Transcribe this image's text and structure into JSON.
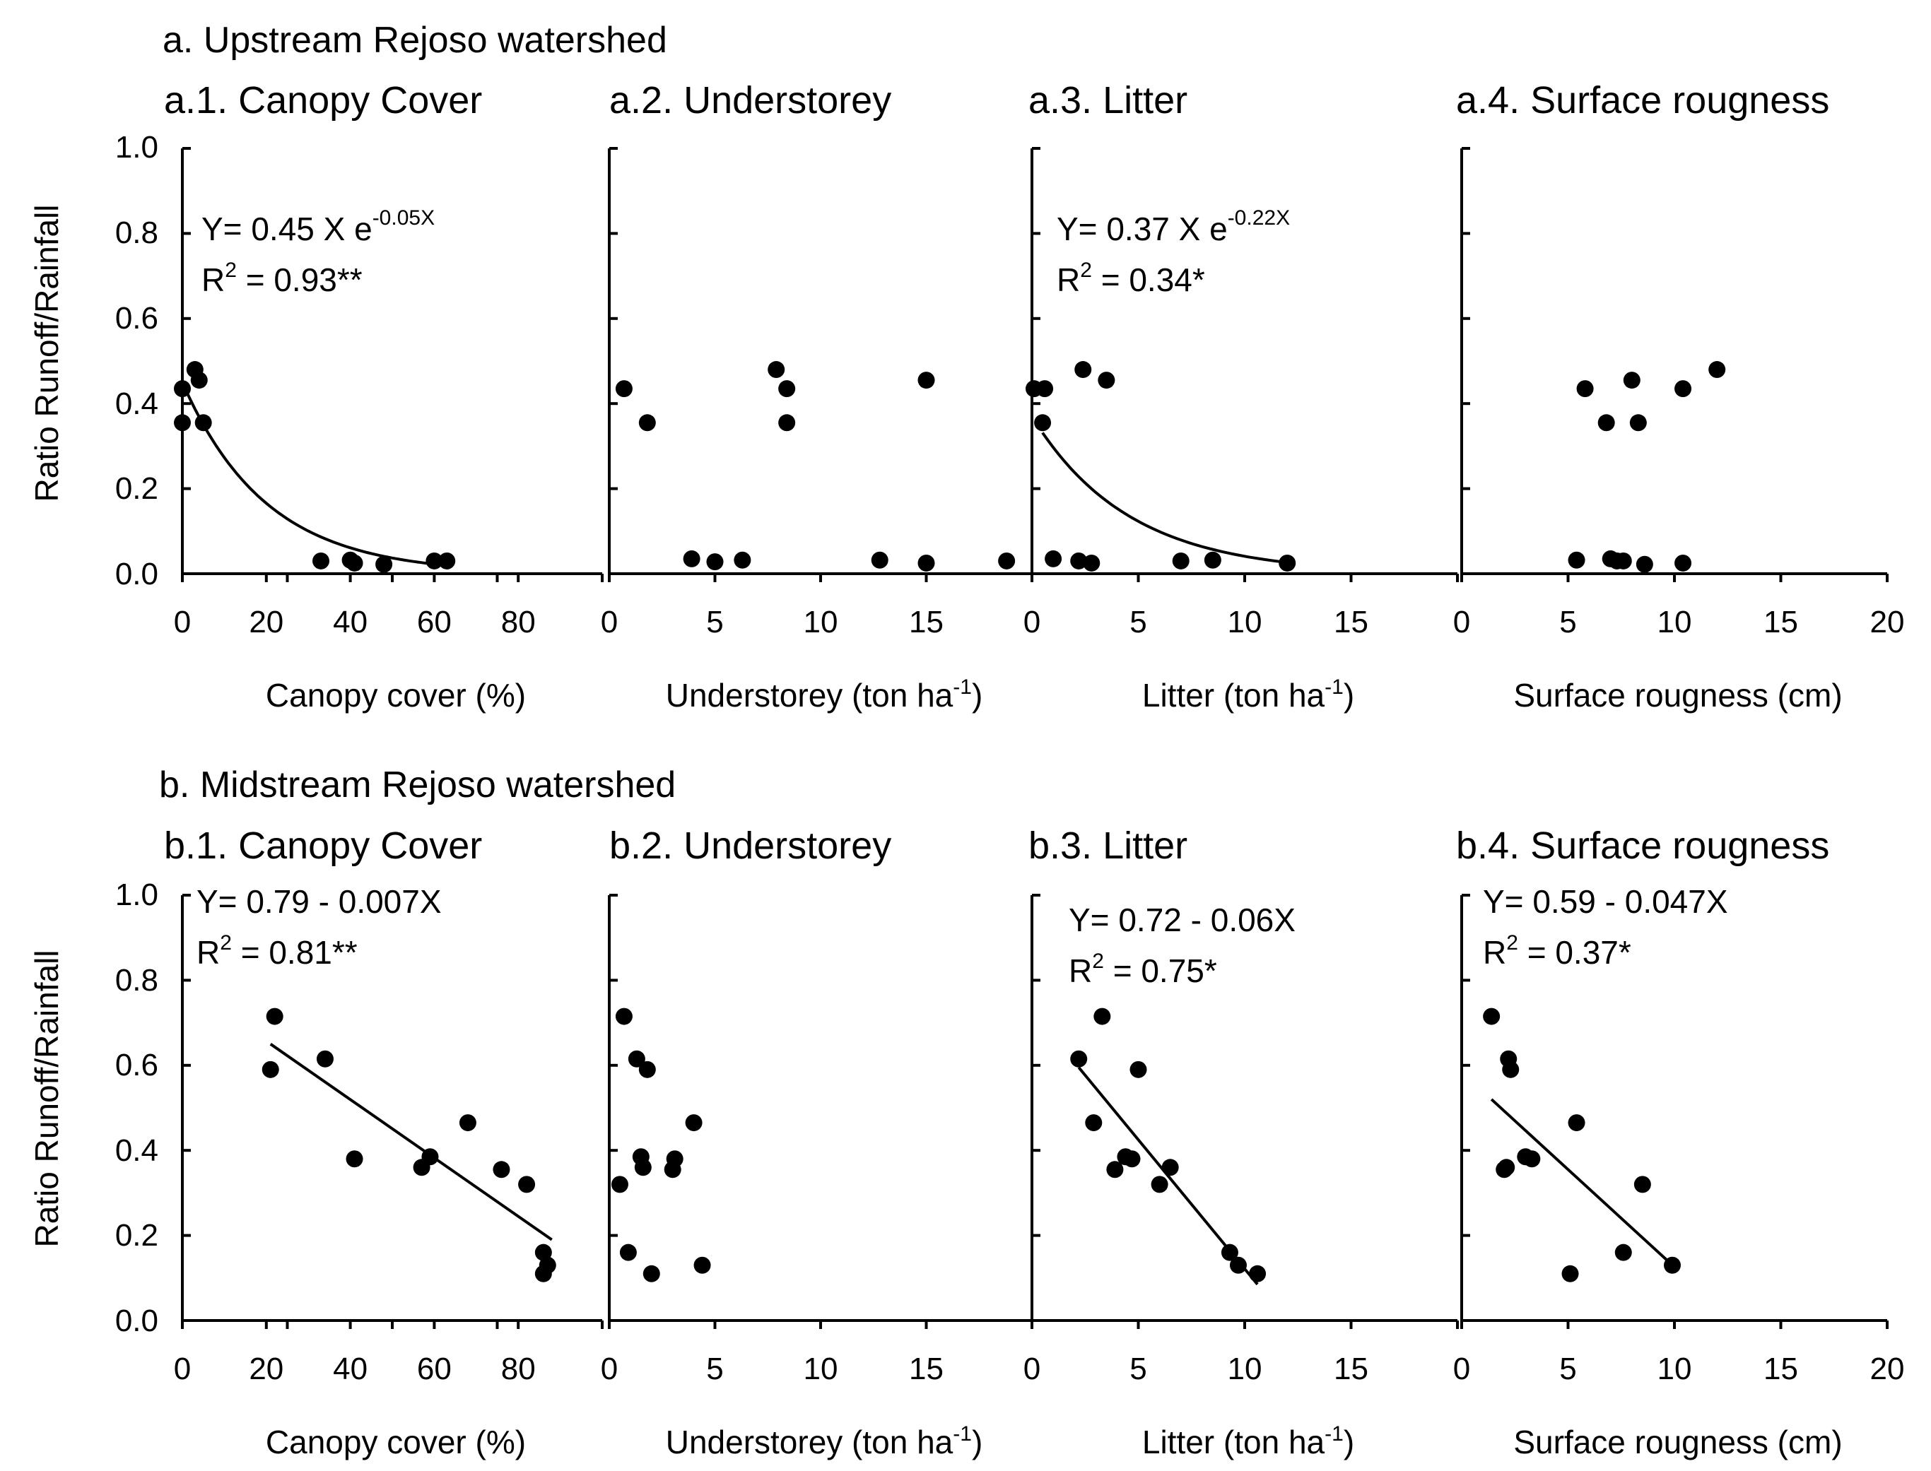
{
  "figure": {
    "y_axis_label": "Ratio Runoff/Rainfall",
    "y_ticks": [
      "0.0",
      "0.2",
      "0.4",
      "0.6",
      "0.8",
      "1.0"
    ]
  },
  "chart_data": [
    {
      "section": "a. Upstream Rejoso watershed",
      "panels": [
        {
          "id": "a1",
          "type": "scatter",
          "title": "a.1. Canopy Cover",
          "xlabel": "Canopy cover (%)",
          "ylabel": "Ratio Runoff/Rainfall",
          "xlim": [
            0,
            100
          ],
          "ylim": [
            0,
            1.0
          ],
          "x_ticks": [
            0,
            20,
            40,
            60,
            80
          ],
          "fit": {
            "type": "exponential",
            "a": 0.45,
            "k": 0.05,
            "x_range": [
              0,
              60
            ]
          },
          "equation": {
            "line1": "Y= 0.45 X e",
            "line1_sup": "-0.05X",
            "r2_prefix": "R",
            "r2_sup": "2",
            "r2_value": " = 0.93**"
          },
          "points": [
            {
              "x": 0,
              "y": 0.435
            },
            {
              "x": 0,
              "y": 0.355
            },
            {
              "x": 3,
              "y": 0.48
            },
            {
              "x": 4,
              "y": 0.455
            },
            {
              "x": 5,
              "y": 0.355
            },
            {
              "x": 33,
              "y": 0.03
            },
            {
              "x": 40,
              "y": 0.032
            },
            {
              "x": 41,
              "y": 0.025
            },
            {
              "x": 48,
              "y": 0.022
            },
            {
              "x": 60,
              "y": 0.03
            },
            {
              "x": 63,
              "y": 0.03
            }
          ]
        },
        {
          "id": "a2",
          "type": "scatter",
          "title": "a.2. Understorey",
          "xlabel": "Understorey (ton ha",
          "xlabel_sup": "-1",
          "xlabel_end": ")",
          "ylabel": "Ratio Runoff/Rainfall",
          "xlim": [
            0,
            20
          ],
          "ylim": [
            0,
            1.0
          ],
          "x_ticks": [
            0,
            5,
            10,
            15
          ],
          "points": [
            {
              "x": 0.7,
              "y": 0.435
            },
            {
              "x": 1.8,
              "y": 0.355
            },
            {
              "x": 3.9,
              "y": 0.035
            },
            {
              "x": 5.0,
              "y": 0.028
            },
            {
              "x": 6.3,
              "y": 0.032
            },
            {
              "x": 7.9,
              "y": 0.48
            },
            {
              "x": 8.4,
              "y": 0.435
            },
            {
              "x": 8.4,
              "y": 0.355
            },
            {
              "x": 12.8,
              "y": 0.032
            },
            {
              "x": 15.0,
              "y": 0.455
            },
            {
              "x": 15.0,
              "y": 0.025
            },
            {
              "x": 18.8,
              "y": 0.03
            }
          ]
        },
        {
          "id": "a3",
          "type": "scatter",
          "title": "a.3. Litter",
          "xlabel": "Litter (ton ha",
          "xlabel_sup": "-1",
          "xlabel_end": ")",
          "ylabel": "Ratio Runoff/Rainfall",
          "xlim": [
            0,
            20
          ],
          "ylim": [
            0,
            1.0
          ],
          "x_ticks": [
            0,
            5,
            10,
            15
          ],
          "fit": {
            "type": "exponential",
            "a": 0.37,
            "k": 0.22,
            "x_range": [
              0.5,
              12
            ]
          },
          "equation": {
            "line1": "Y= 0.37 X e",
            "line1_sup": "-0.22X",
            "r2_prefix": "R",
            "r2_sup": "2",
            "r2_value": " = 0.34*"
          },
          "points": [
            {
              "x": 0.1,
              "y": 0.435
            },
            {
              "x": 0.6,
              "y": 0.435
            },
            {
              "x": 0.5,
              "y": 0.355
            },
            {
              "x": 1.0,
              "y": 0.035
            },
            {
              "x": 2.2,
              "y": 0.03
            },
            {
              "x": 2.4,
              "y": 0.48
            },
            {
              "x": 2.8,
              "y": 0.025
            },
            {
              "x": 3.5,
              "y": 0.455
            },
            {
              "x": 7.0,
              "y": 0.03
            },
            {
              "x": 8.5,
              "y": 0.032
            },
            {
              "x": 12.0,
              "y": 0.025
            }
          ]
        },
        {
          "id": "a4",
          "type": "scatter",
          "title": "a.4. Surface rougness",
          "xlabel": "Surface rougness (cm)",
          "ylabel": "Ratio Runoff/Rainfall",
          "xlim": [
            0,
            20
          ],
          "ylim": [
            0,
            1.0
          ],
          "x_ticks": [
            0,
            5,
            10,
            15,
            20
          ],
          "points": [
            {
              "x": 5.4,
              "y": 0.032
            },
            {
              "x": 5.8,
              "y": 0.435
            },
            {
              "x": 6.8,
              "y": 0.355
            },
            {
              "x": 7.0,
              "y": 0.035
            },
            {
              "x": 7.3,
              "y": 0.03
            },
            {
              "x": 7.6,
              "y": 0.03
            },
            {
              "x": 8.0,
              "y": 0.455
            },
            {
              "x": 8.3,
              "y": 0.355
            },
            {
              "x": 8.6,
              "y": 0.022
            },
            {
              "x": 10.4,
              "y": 0.435
            },
            {
              "x": 10.4,
              "y": 0.025
            },
            {
              "x": 12.0,
              "y": 0.48
            }
          ]
        }
      ]
    },
    {
      "section": "b. Midstream Rejoso watershed",
      "panels": [
        {
          "id": "b1",
          "type": "scatter",
          "title": "b.1. Canopy Cover",
          "xlabel": "Canopy cover (%)",
          "ylabel": "Ratio Runoff/Rainfall",
          "xlim": [
            0,
            100
          ],
          "ylim": [
            0,
            1.0
          ],
          "x_ticks": [
            0,
            20,
            40,
            60,
            80
          ],
          "fit": {
            "type": "linear",
            "intercept": 0.79,
            "slope": -0.007,
            "x_range": [
              21,
              88
            ],
            "y_range": [
              0.65,
              0.19
            ]
          },
          "equation": {
            "line1": "Y= 0.79 - 0.007X",
            "line1_sup": "",
            "r2_prefix": "R",
            "r2_sup": "2",
            "r2_value": " = 0.81**"
          },
          "points": [
            {
              "x": 21,
              "y": 0.59
            },
            {
              "x": 22,
              "y": 0.715
            },
            {
              "x": 34,
              "y": 0.615
            },
            {
              "x": 41,
              "y": 0.38
            },
            {
              "x": 57,
              "y": 0.36
            },
            {
              "x": 59,
              "y": 0.385
            },
            {
              "x": 68,
              "y": 0.465
            },
            {
              "x": 76,
              "y": 0.355
            },
            {
              "x": 82,
              "y": 0.32
            },
            {
              "x": 86,
              "y": 0.16
            },
            {
              "x": 86,
              "y": 0.11
            },
            {
              "x": 87,
              "y": 0.13
            }
          ]
        },
        {
          "id": "b2",
          "type": "scatter",
          "title": "b.2. Understorey",
          "xlabel": "Understorey (ton ha",
          "xlabel_sup": "-1",
          "xlabel_end": ")",
          "ylabel": "Ratio Runoff/Rainfall",
          "xlim": [
            0,
            20
          ],
          "ylim": [
            0,
            1.0
          ],
          "x_ticks": [
            0,
            5,
            10,
            15
          ],
          "points": [
            {
              "x": 0.5,
              "y": 0.32
            },
            {
              "x": 0.7,
              "y": 0.715
            },
            {
              "x": 0.9,
              "y": 0.16
            },
            {
              "x": 1.3,
              "y": 0.615
            },
            {
              "x": 1.5,
              "y": 0.385
            },
            {
              "x": 1.6,
              "y": 0.36
            },
            {
              "x": 1.8,
              "y": 0.59
            },
            {
              "x": 2.0,
              "y": 0.11
            },
            {
              "x": 3.0,
              "y": 0.355
            },
            {
              "x": 3.1,
              "y": 0.38
            },
            {
              "x": 4.0,
              "y": 0.465
            },
            {
              "x": 4.4,
              "y": 0.13
            }
          ]
        },
        {
          "id": "b3",
          "type": "scatter",
          "title": "b.3. Litter",
          "xlabel": "Litter (ton ha",
          "xlabel_sup": "-1",
          "xlabel_end": ")",
          "ylabel": "Ratio Runoff/Rainfall",
          "xlim": [
            0,
            20
          ],
          "ylim": [
            0,
            1.0
          ],
          "x_ticks": [
            0,
            5,
            10,
            15
          ],
          "fit": {
            "type": "linear",
            "intercept": 0.72,
            "slope": -0.06,
            "x_range": [
              2.2,
              10.6
            ],
            "y_range": [
              0.595,
              0.085
            ]
          },
          "equation": {
            "line1": "Y= 0.72 - 0.06X",
            "line1_sup": "",
            "r2_prefix": "R",
            "r2_sup": "2",
            "r2_value": " = 0.75*"
          },
          "points": [
            {
              "x": 2.2,
              "y": 0.615
            },
            {
              "x": 2.9,
              "y": 0.465
            },
            {
              "x": 3.3,
              "y": 0.715
            },
            {
              "x": 3.9,
              "y": 0.355
            },
            {
              "x": 4.4,
              "y": 0.385
            },
            {
              "x": 4.7,
              "y": 0.38
            },
            {
              "x": 5.0,
              "y": 0.59
            },
            {
              "x": 6.0,
              "y": 0.32
            },
            {
              "x": 6.5,
              "y": 0.36
            },
            {
              "x": 9.3,
              "y": 0.16
            },
            {
              "x": 9.7,
              "y": 0.13
            },
            {
              "x": 10.6,
              "y": 0.11
            }
          ]
        },
        {
          "id": "b4",
          "type": "scatter",
          "title": "b.4. Surface rougness",
          "xlabel": "Surface rougness (cm)",
          "ylabel": "Ratio Runoff/Rainfall",
          "xlim": [
            0,
            20
          ],
          "ylim": [
            0,
            1.0
          ],
          "x_ticks": [
            0,
            5,
            10,
            15,
            20
          ],
          "fit": {
            "type": "linear",
            "intercept": 0.59,
            "slope": -0.047,
            "x_range": [
              1.4,
              9.8
            ],
            "y_range": [
              0.52,
              0.135
            ]
          },
          "equation": {
            "line1": "Y= 0.59 - 0.047X",
            "line1_sup": "",
            "r2_prefix": "R",
            "r2_sup": "2",
            "r2_value": " = 0.37*"
          },
          "points": [
            {
              "x": 1.4,
              "y": 0.715
            },
            {
              "x": 2.0,
              "y": 0.355
            },
            {
              "x": 2.1,
              "y": 0.36
            },
            {
              "x": 2.2,
              "y": 0.615
            },
            {
              "x": 2.3,
              "y": 0.59
            },
            {
              "x": 3.0,
              "y": 0.385
            },
            {
              "x": 3.3,
              "y": 0.38
            },
            {
              "x": 5.1,
              "y": 0.11
            },
            {
              "x": 5.4,
              "y": 0.465
            },
            {
              "x": 7.6,
              "y": 0.16
            },
            {
              "x": 8.5,
              "y": 0.32
            },
            {
              "x": 9.9,
              "y": 0.13
            }
          ]
        }
      ]
    }
  ]
}
